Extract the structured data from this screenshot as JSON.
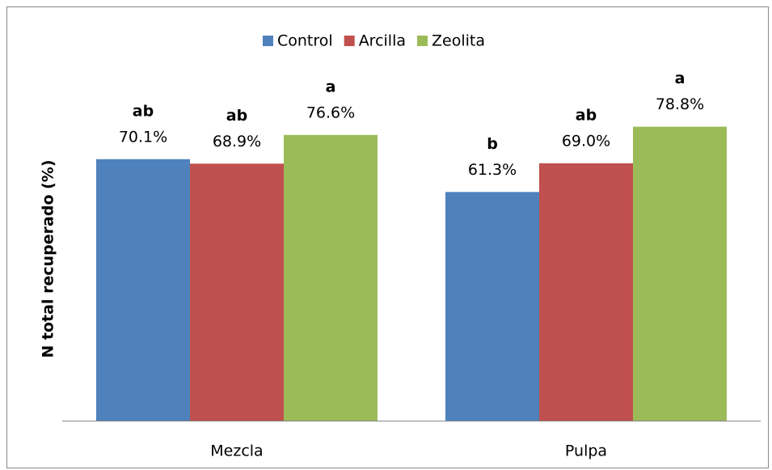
{
  "chart_data": {
    "type": "bar",
    "y_label": "N total recuperado (%)",
    "categories": [
      "Mezcla",
      "Pulpa"
    ],
    "series": [
      {
        "name": "Control",
        "color": "#4f81bd",
        "values": [
          70.1,
          61.3
        ],
        "value_labels": [
          "70.1%",
          "61.3%"
        ],
        "letters": [
          "ab",
          "b"
        ]
      },
      {
        "name": "Arcilla",
        "color": "#c0504d",
        "values": [
          68.9,
          69.0
        ],
        "value_labels": [
          "68.9%",
          "69.0%"
        ],
        "letters": [
          "ab",
          "ab"
        ]
      },
      {
        "name": "Zeolita",
        "color": "#9bbb59",
        "values": [
          76.6,
          78.8
        ],
        "value_labels": [
          "76.6%",
          "78.8%"
        ],
        "letters": [
          "a",
          "a"
        ]
      }
    ],
    "ylim": [
      0,
      90
    ],
    "legend": "top"
  }
}
